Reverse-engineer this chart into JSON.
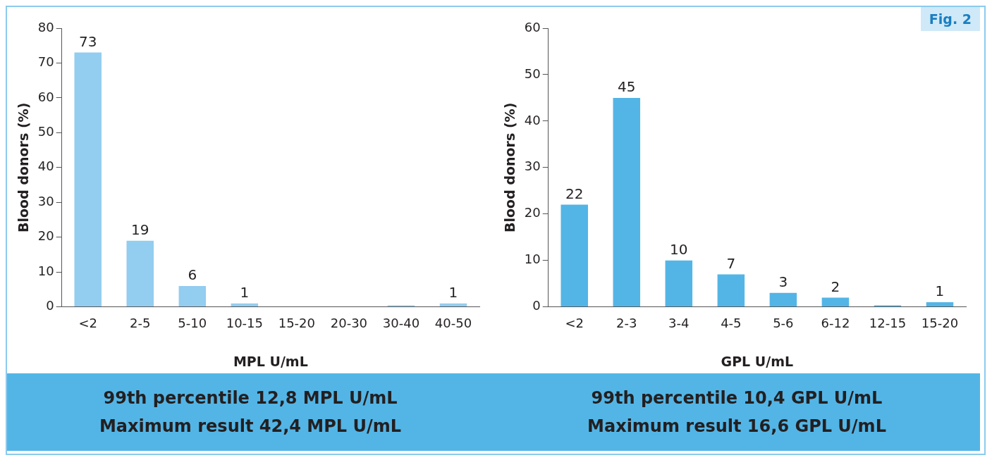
{
  "chart_data": [
    {
      "type": "bar",
      "xlabel": "MPL U/mL",
      "ylabel": "Blood donors (%)",
      "categories": [
        "<2",
        "2-5",
        "5-10",
        "10-15",
        "15-20",
        "20-30",
        "30-40",
        "40-50"
      ],
      "values": [
        73,
        19,
        6,
        1,
        0,
        0,
        0.4,
        1
      ],
      "value_labels": [
        "73",
        "19",
        "6",
        "1",
        null,
        null,
        null,
        "1"
      ],
      "color": "#93cdf0",
      "ylim": [
        0,
        80
      ],
      "yticks": [
        0,
        10,
        20,
        30,
        40,
        50,
        60,
        70,
        80
      ],
      "grid": false,
      "legend": false,
      "annotations": [
        "99th percentile 12,8 MPL U/mL",
        "Maximum result 42,4 MPL U/mL"
      ]
    },
    {
      "type": "bar",
      "title": "Fig. 2",
      "xlabel": "GPL U/mL",
      "ylabel": "Blood donors (%)",
      "categories": [
        "<2",
        "2-3",
        "3-4",
        "4-5",
        "5-6",
        "6-12",
        "12-15",
        "15-20"
      ],
      "values": [
        22,
        45,
        10,
        7,
        3,
        2,
        0.3,
        1
      ],
      "value_labels": [
        "22",
        "45",
        "10",
        "7",
        "3",
        "2",
        null,
        "1"
      ],
      "color": "#53b5e6",
      "ylim": [
        0,
        60
      ],
      "yticks": [
        0,
        10,
        20,
        30,
        40,
        50,
        60
      ],
      "grid": false,
      "legend": false,
      "annotations": [
        "99th percentile 10,4 GPL U/mL",
        "Maximum result 16,6 GPL U/mL"
      ]
    }
  ]
}
